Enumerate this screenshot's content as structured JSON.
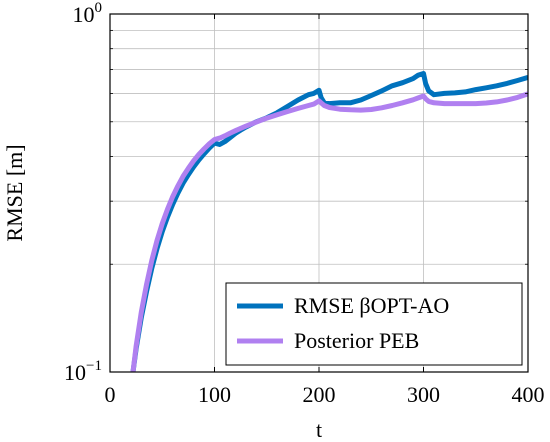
{
  "chart_data": {
    "type": "line",
    "xlabel": "t",
    "ylabel": "RMSE [m]",
    "xlim": [
      0,
      400
    ],
    "ylim": [
      0.1,
      1.0
    ],
    "yscale": "log",
    "x_ticks": [
      "0",
      "100",
      "200",
      "300",
      "400"
    ],
    "y_ticks": [
      {
        "value": 1.0,
        "base": "10",
        "exp": "0"
      },
      {
        "value": 0.1,
        "base": "10",
        "exp": "−1"
      }
    ],
    "grid": true,
    "legend_position": "bottom-right",
    "series": [
      {
        "name": "RMSE βOPT-AO",
        "color": "#0072bd",
        "x": [
          22,
          25,
          30,
          35,
          40,
          45,
          50,
          55,
          60,
          65,
          70,
          75,
          80,
          85,
          90,
          95,
          100,
          105,
          110,
          115,
          120,
          125,
          130,
          140,
          150,
          160,
          170,
          180,
          190,
          195,
          200,
          202,
          205,
          210,
          220,
          230,
          240,
          250,
          260,
          270,
          280,
          290,
          295,
          300,
          302,
          305,
          310,
          320,
          330,
          340,
          350,
          360,
          370,
          380,
          390,
          400
        ],
        "y": [
          0.1,
          0.116,
          0.142,
          0.168,
          0.195,
          0.221,
          0.247,
          0.271,
          0.294,
          0.316,
          0.337,
          0.356,
          0.374,
          0.391,
          0.407,
          0.422,
          0.436,
          0.432,
          0.44,
          0.452,
          0.464,
          0.474,
          0.483,
          0.5,
          0.513,
          0.53,
          0.552,
          0.575,
          0.595,
          0.6,
          0.612,
          0.584,
          0.565,
          0.562,
          0.565,
          0.565,
          0.575,
          0.592,
          0.61,
          0.63,
          0.643,
          0.66,
          0.675,
          0.682,
          0.64,
          0.61,
          0.595,
          0.6,
          0.602,
          0.606,
          0.615,
          0.622,
          0.63,
          0.64,
          0.652,
          0.665
        ]
      },
      {
        "name": "Posterior PEB",
        "color": "#b080f0",
        "x": [
          22,
          25,
          30,
          35,
          40,
          45,
          50,
          55,
          60,
          65,
          70,
          75,
          80,
          85,
          90,
          95,
          100,
          105,
          110,
          115,
          120,
          125,
          130,
          140,
          150,
          160,
          170,
          180,
          190,
          195,
          200,
          202,
          205,
          210,
          220,
          230,
          240,
          250,
          260,
          270,
          280,
          290,
          295,
          300,
          302,
          305,
          310,
          320,
          330,
          340,
          350,
          360,
          370,
          380,
          390,
          400
        ],
        "y": [
          0.1,
          0.118,
          0.147,
          0.176,
          0.205,
          0.233,
          0.26,
          0.285,
          0.309,
          0.331,
          0.352,
          0.371,
          0.389,
          0.405,
          0.42,
          0.434,
          0.446,
          0.45,
          0.457,
          0.465,
          0.472,
          0.479,
          0.486,
          0.499,
          0.512,
          0.523,
          0.534,
          0.545,
          0.555,
          0.56,
          0.572,
          0.565,
          0.555,
          0.548,
          0.542,
          0.54,
          0.539,
          0.541,
          0.547,
          0.555,
          0.565,
          0.576,
          0.583,
          0.59,
          0.58,
          0.57,
          0.565,
          0.562,
          0.562,
          0.562,
          0.562,
          0.564,
          0.568,
          0.575,
          0.585,
          0.598
        ]
      }
    ]
  }
}
